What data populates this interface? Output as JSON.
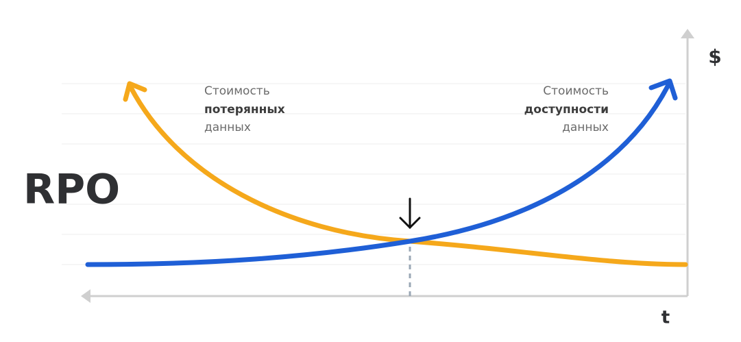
{
  "title": "RPO",
  "axes": {
    "y": "$",
    "x": "t"
  },
  "curves": [
    {
      "lines": [
        "Стоимость",
        "потерянных",
        "данных"
      ]
    },
    {
      "lines": [
        "Стоимость",
        "доступности",
        "данных"
      ]
    }
  ]
}
